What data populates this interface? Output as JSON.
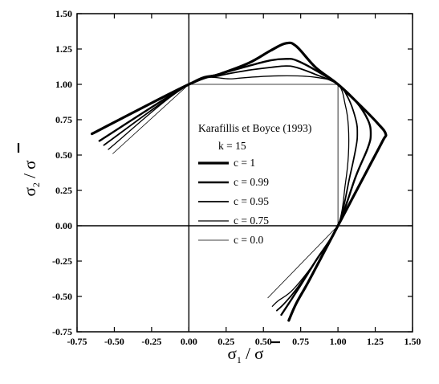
{
  "chart_data": {
    "type": "line",
    "xlabel": {
      "symbol": "σ",
      "subscript": "1",
      "denominator": "σ"
    },
    "ylabel": {
      "symbol": "σ",
      "subscript": "2",
      "denominator": "σ"
    },
    "xlim": [
      -0.75,
      1.5
    ],
    "ylim": [
      -0.75,
      1.5
    ],
    "xticks": [
      "-0.75",
      "-0.50",
      "-0.25",
      "0.00",
      "0.25",
      "0.50",
      "0.75",
      "1.00",
      "1.25",
      "1.50"
    ],
    "yticks": [
      "-0.75",
      "-0.50",
      "-0.25",
      "0.00",
      "0.25",
      "0.50",
      "0.75",
      "1.00",
      "1.25",
      "1.50"
    ],
    "reference_lines": {
      "x": 0,
      "y": 0
    },
    "grid": false,
    "legend": {
      "title": "Karafillis et Boyce (1993)",
      "subtitle": "k = 15",
      "placement": "center"
    },
    "series": [
      {
        "name": "c = 1",
        "line_width": 3.2,
        "x": [
          -0.65,
          0.0,
          0.2,
          0.4,
          0.55,
          0.65,
          0.72,
          0.85,
          1.0,
          1.15,
          1.27,
          1.32,
          1.3,
          1.2,
          1.0,
          0.9,
          0.8,
          0.72,
          0.67
        ],
        "y": [
          0.65,
          1.0,
          1.07,
          1.15,
          1.24,
          1.29,
          1.27,
          1.12,
          1.0,
          0.85,
          0.72,
          0.65,
          0.6,
          0.4,
          0.0,
          -0.2,
          -0.4,
          -0.55,
          -0.67
        ]
      },
      {
        "name": "c = 0.99",
        "line_width": 2.4,
        "x": [
          -0.6,
          0.0,
          0.2,
          0.4,
          0.55,
          0.65,
          0.72,
          0.85,
          1.0,
          1.12,
          1.2,
          1.22,
          1.2,
          1.12,
          1.0,
          0.85,
          0.75,
          0.67,
          0.62
        ],
        "y": [
          0.6,
          1.0,
          1.07,
          1.13,
          1.17,
          1.18,
          1.17,
          1.1,
          1.0,
          0.88,
          0.75,
          0.65,
          0.55,
          0.35,
          0.0,
          -0.25,
          -0.42,
          -0.55,
          -0.63
        ]
      },
      {
        "name": "c = 0.95",
        "line_width": 1.8,
        "x": [
          -0.57,
          0.0,
          0.2,
          0.4,
          0.55,
          0.65,
          0.72,
          0.85,
          1.0,
          1.07,
          1.12,
          1.13,
          1.12,
          1.08,
          1.0,
          0.85,
          0.72,
          0.64,
          0.59
        ],
        "y": [
          0.57,
          1.0,
          1.06,
          1.1,
          1.12,
          1.13,
          1.12,
          1.07,
          1.0,
          0.9,
          0.75,
          0.65,
          0.55,
          0.35,
          0.0,
          -0.25,
          -0.45,
          -0.55,
          -0.6
        ]
      },
      {
        "name": "c = 0.75",
        "line_width": 1.3,
        "x": [
          -0.54,
          0.0,
          0.3,
          0.6,
          0.85,
          1.0,
          1.05,
          1.07,
          1.07,
          1.05,
          1.0,
          0.85,
          0.7,
          0.6,
          0.56
        ],
        "y": [
          0.54,
          1.0,
          1.04,
          1.06,
          1.05,
          1.0,
          0.85,
          0.7,
          0.5,
          0.3,
          0.0,
          -0.25,
          -0.45,
          -0.53,
          -0.57
        ]
      },
      {
        "name": "c = 0.0",
        "line_width": 0.8,
        "x": [
          -0.51,
          0.0,
          1.0,
          1.0,
          0.53
        ],
        "y": [
          0.51,
          1.0,
          1.0,
          0.0,
          -0.51
        ]
      }
    ]
  }
}
